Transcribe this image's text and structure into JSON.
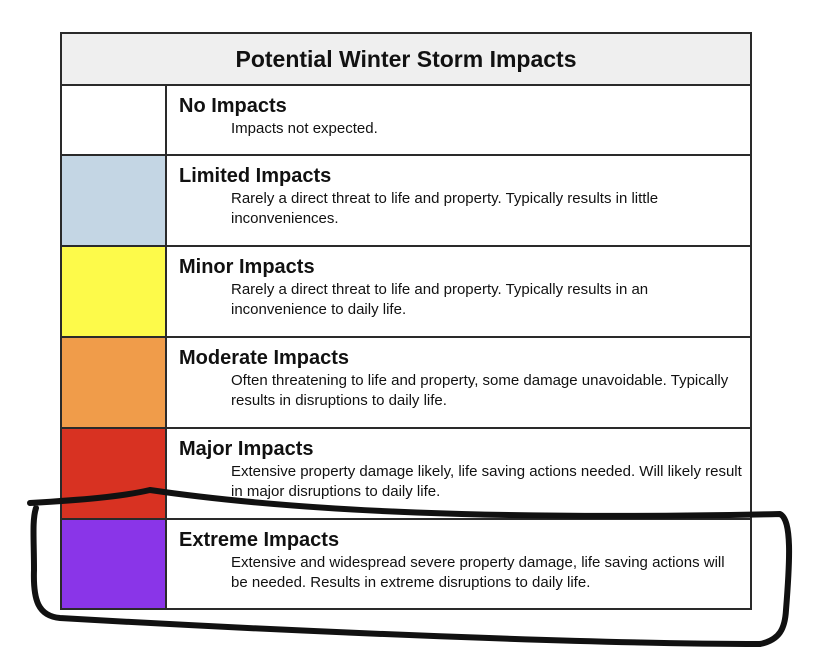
{
  "table": {
    "title": "Potential Winter Storm Impacts",
    "levels": [
      {
        "title": "No Impacts",
        "description": "Impacts not expected.",
        "color": "#ffffff"
      },
      {
        "title": "Limited Impacts",
        "description": "Rarely a direct threat to life and property. Typically results in little inconveniences.",
        "color": "#c4d6e4"
      },
      {
        "title": "Minor Impacts",
        "description": "Rarely a direct threat to life and property. Typically results in an inconvenience to daily life.",
        "color": "#fdfa4a"
      },
      {
        "title": "Moderate Impacts",
        "description": "Often threatening to life and property, some damage unavoidable. Typically results in disruptions to daily life.",
        "color": "#f09c4a"
      },
      {
        "title": "Major Impacts",
        "description": "Extensive property damage likely, life saving actions needed. Will likely result in major disruptions to daily life.",
        "color": "#d83222"
      },
      {
        "title": "Extreme Impacts",
        "description": "Extensive and widespread severe property damage, life saving actions will be needed. Results in extreme disruptions to daily life.",
        "color": "#8a35e8"
      }
    ]
  },
  "annotation": {
    "type": "hand-drawn-circle",
    "target": "Extreme Impacts",
    "color": "#111111"
  }
}
